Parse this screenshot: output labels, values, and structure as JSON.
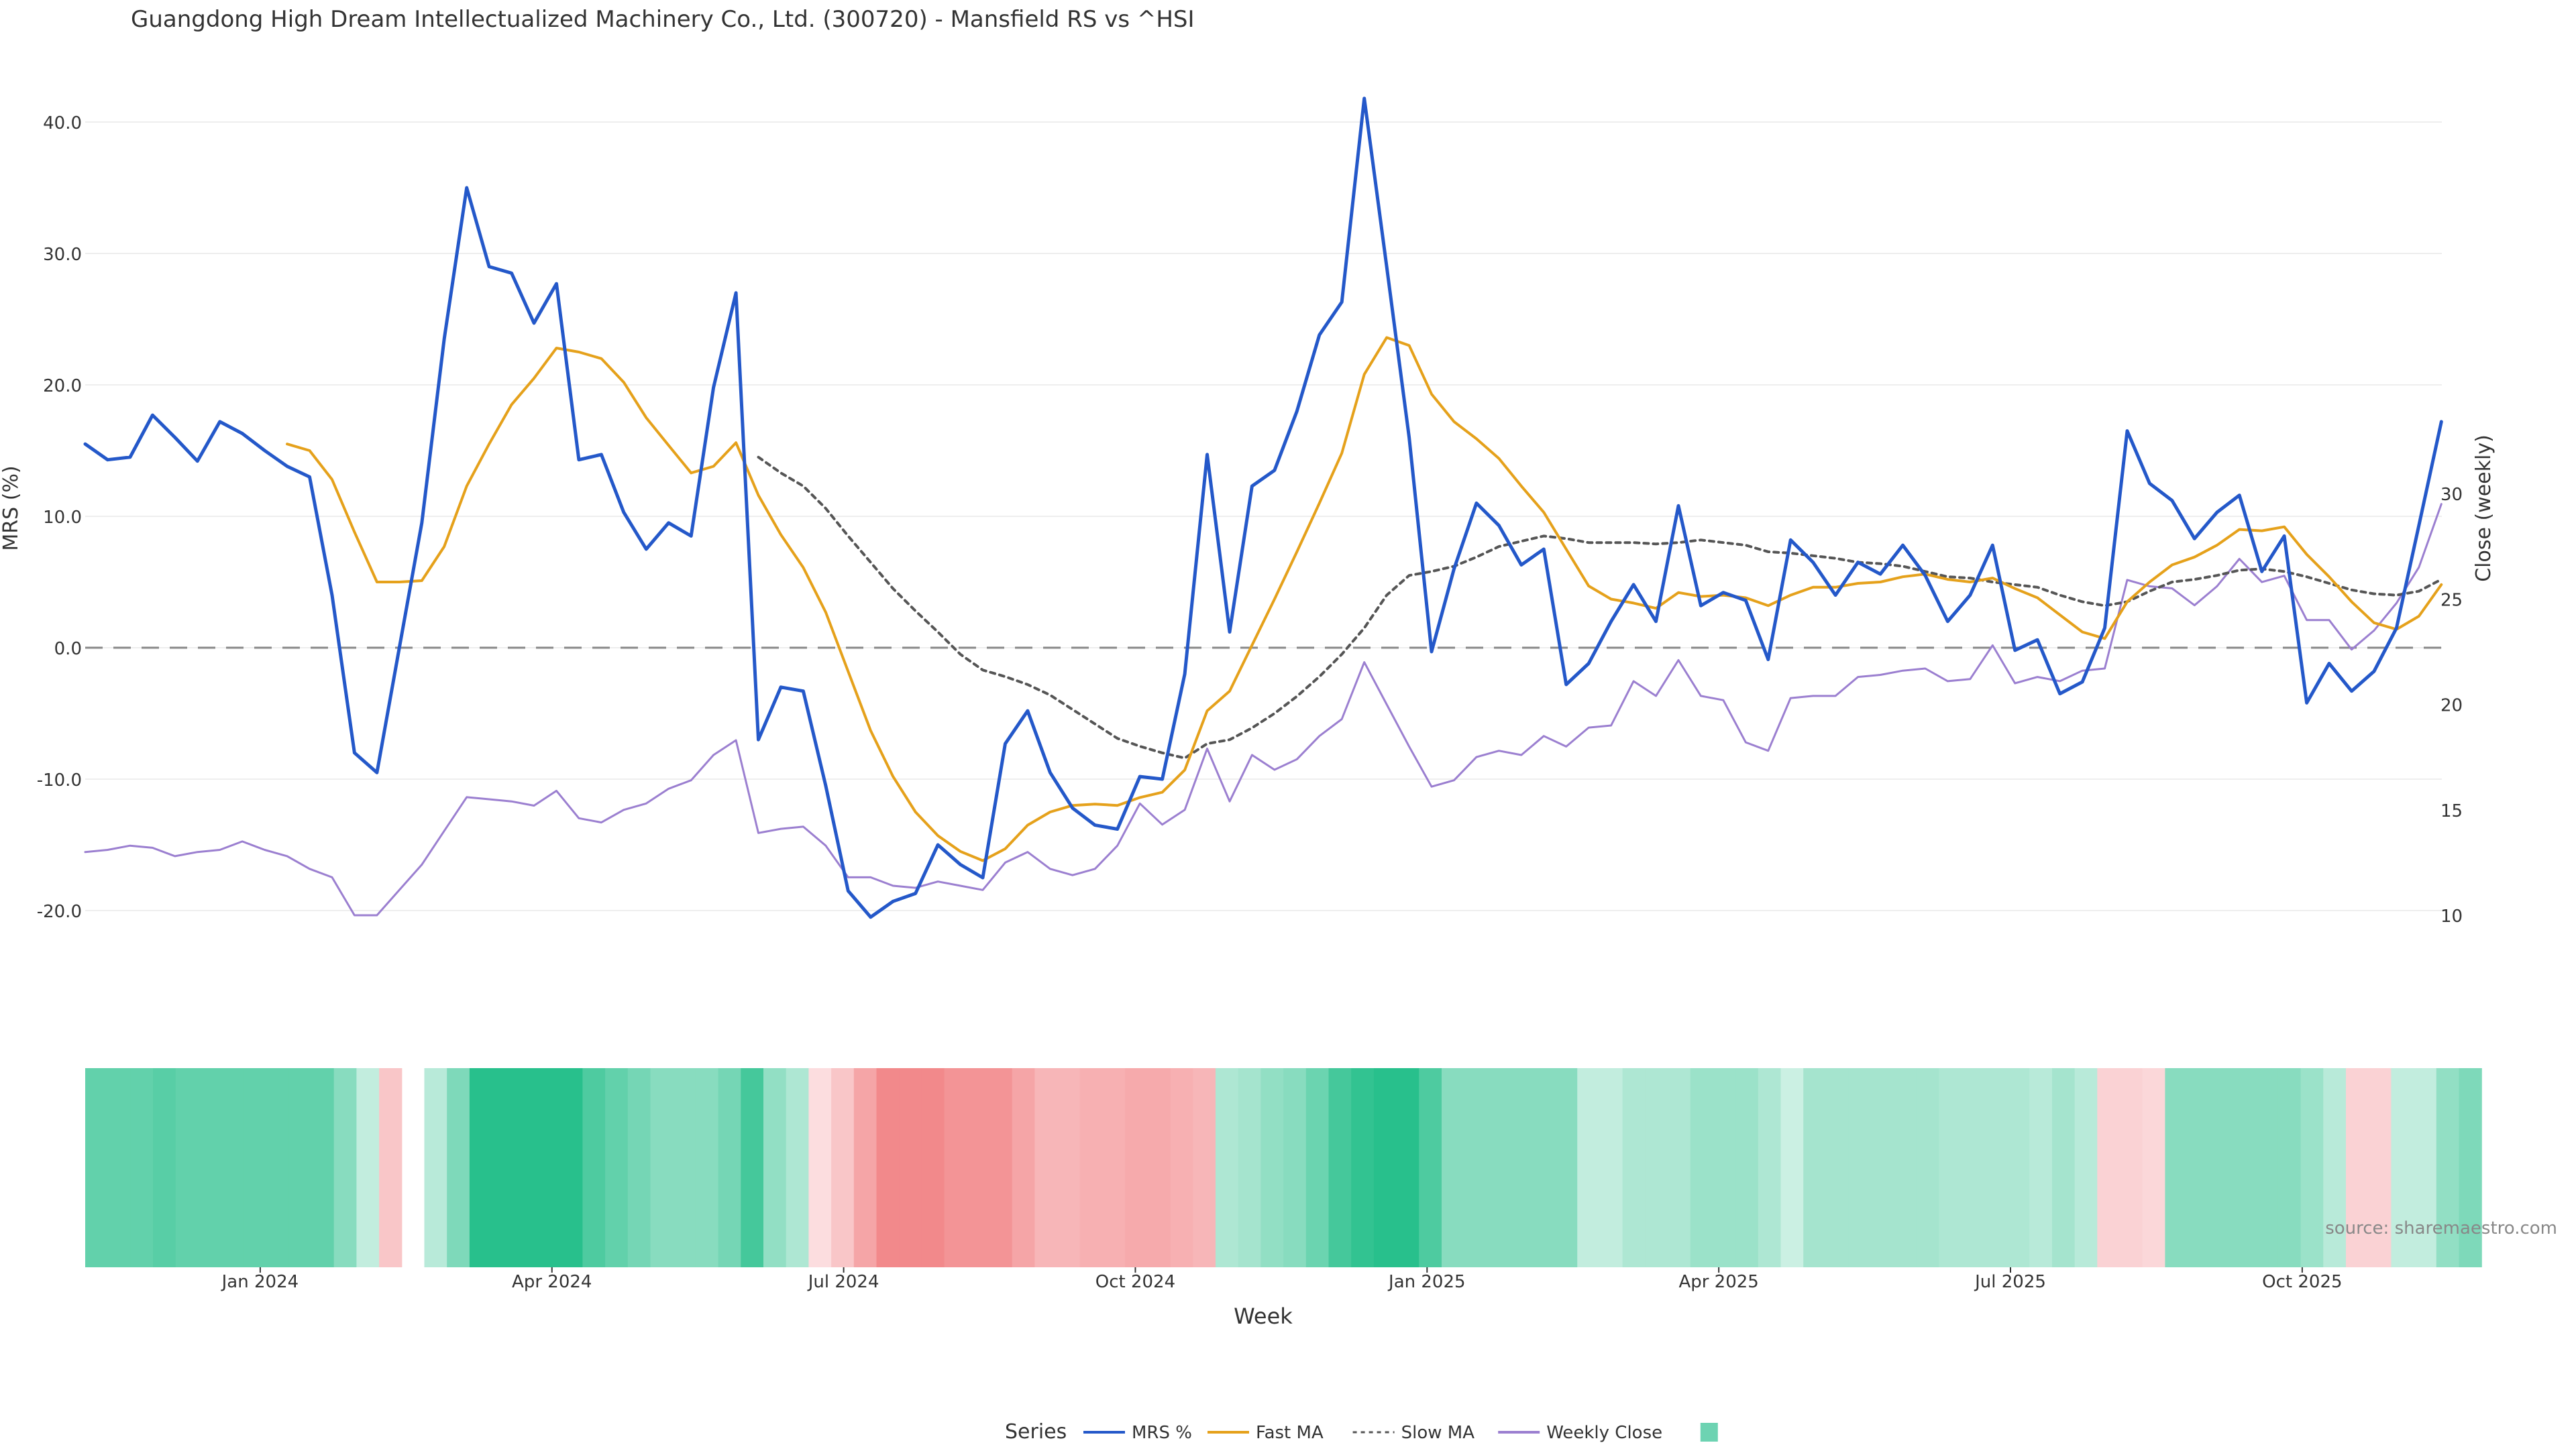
{
  "chart_data": {
    "type": "line",
    "title": "Guangdong High Dream Intellectualized Machinery Co., Ltd. (300720) - Mansfield RS vs ^HSI",
    "xlabel": "Week",
    "ylabel": "MRS (%)",
    "y2label": "Close (weekly)",
    "source": "source: sharemaestro.com",
    "legend_title": "Series",
    "ylim": [
      -25,
      45
    ],
    "y2lim": [
      7.7,
      30
    ],
    "yticks": [
      "-20.0",
      "-10.0",
      "0.0",
      "10.0",
      "20.0",
      "30.0",
      "40.0"
    ],
    "y2ticks": [
      "10",
      "15",
      "20",
      "25",
      "30"
    ],
    "xticks": [
      "Jan 2024",
      "Apr 2024",
      "Jul 2024",
      "Oct 2024",
      "Jan 2025",
      "Apr 2025",
      "Jul 2025",
      "Oct 2025"
    ],
    "xtick_positions": [
      7.8,
      20.8,
      33.8,
      46.8,
      59.8,
      72.8,
      85.8,
      98.8
    ],
    "grid": true,
    "legend_position": "bottom-center",
    "series": [
      {
        "name": "MRS %",
        "color": "#2458c9",
        "axis": "left",
        "dash": "solid",
        "start_week": 0,
        "values": [
          15.5,
          14.3,
          14.5,
          17.7,
          16.0,
          14.2,
          17.2,
          16.3,
          15.0,
          13.8,
          13.0,
          4.0,
          -8.0,
          -9.5,
          0.0,
          9.5,
          23.5,
          35.0,
          29.0,
          28.5,
          24.7,
          27.7,
          14.3,
          14.7,
          10.3,
          7.5,
          9.5,
          8.5,
          19.8,
          27.0,
          -7.0,
          -3.0,
          -3.3,
          -10.5,
          -18.5,
          -20.5,
          -19.3,
          -18.7,
          -15.0,
          -16.5,
          -17.5,
          -7.3,
          -4.8,
          -9.5,
          -12.2,
          -13.5,
          -13.8,
          -9.8,
          -10.0,
          -2.0,
          14.7,
          1.2,
          12.3,
          13.5,
          18.0,
          23.8,
          26.3,
          41.8,
          29.0,
          16.0,
          -0.3,
          6.0,
          11.0,
          9.3,
          6.3,
          7.5,
          -2.8,
          -1.2,
          2.0,
          4.8,
          2.0,
          10.8,
          3.2,
          4.2,
          3.6,
          -0.9,
          8.2,
          6.5,
          4.0,
          6.5,
          5.6,
          7.8,
          5.5,
          2.0,
          4.0,
          7.8,
          -0.2,
          0.6,
          -3.5,
          -2.6,
          1.5,
          16.5,
          12.5,
          11.2,
          8.3,
          10.3,
          11.6,
          5.8,
          8.5,
          -4.2,
          -1.2,
          -3.3,
          -1.8,
          1.5,
          9.3,
          17.2
        ]
      },
      {
        "name": "Fast MA",
        "color": "#e5a11b",
        "axis": "left",
        "dash": "solid",
        "start_week": 9,
        "values": [
          15.5,
          15.0,
          12.8,
          8.8,
          5.0,
          5.0,
          5.1,
          7.7,
          12.3,
          15.5,
          18.5,
          20.5,
          22.8,
          22.5,
          22.0,
          20.2,
          17.5,
          15.4,
          13.3,
          13.8,
          15.6,
          11.6,
          8.6,
          6.1,
          2.7,
          -1.8,
          -6.3,
          -9.8,
          -12.5,
          -14.3,
          -15.5,
          -16.2,
          -15.3,
          -13.5,
          -12.5,
          -12.0,
          -11.9,
          -12.0,
          -11.4,
          -11.0,
          -9.3,
          -4.8,
          -3.3,
          0.2,
          3.7,
          7.3,
          11.0,
          14.8,
          20.8,
          23.6,
          23.0,
          19.3,
          17.2,
          15.9,
          14.4,
          12.3,
          10.3,
          7.5,
          4.7,
          3.7,
          3.4,
          3.0,
          4.2,
          3.9,
          4.0,
          3.8,
          3.2,
          4.0,
          4.6,
          4.6,
          4.9,
          5.0,
          5.4,
          5.6,
          5.2,
          5.0,
          5.3,
          4.5,
          3.8,
          2.5,
          1.2,
          0.7,
          3.5,
          5.0,
          6.3,
          6.9,
          7.8,
          9.0,
          8.9,
          9.2,
          7.1,
          5.4,
          3.5,
          1.9,
          1.4,
          2.4,
          4.8
        ]
      },
      {
        "name": "Slow MA",
        "color": "#555555",
        "axis": "left",
        "dash": "dotted",
        "start_week": 30,
        "values": [
          14.5,
          13.3,
          12.3,
          10.6,
          8.5,
          6.5,
          4.5,
          2.8,
          1.2,
          -0.5,
          -1.7,
          -2.2,
          -2.8,
          -3.6,
          -4.7,
          -5.8,
          -6.9,
          -7.5,
          -8.0,
          -8.4,
          -7.3,
          -7.0,
          -6.1,
          -5.0,
          -3.7,
          -2.2,
          -0.5,
          1.5,
          4.0,
          5.5,
          5.8,
          6.2,
          6.9,
          7.7,
          8.1,
          8.5,
          8.3,
          8.0,
          8.0,
          8.0,
          7.9,
          8.0,
          8.2,
          8.0,
          7.8,
          7.3,
          7.2,
          7.0,
          6.8,
          6.5,
          6.4,
          6.2,
          5.8,
          5.4,
          5.3,
          5.0,
          4.8,
          4.6,
          4.0,
          3.5,
          3.2,
          3.5,
          4.3,
          5.0,
          5.2,
          5.5,
          5.9,
          6.0,
          5.8,
          5.4,
          4.9,
          4.4,
          4.1,
          4.0,
          4.3,
          5.2
        ]
      },
      {
        "name": "Weekly Close",
        "color": "#9b7fd0",
        "axis": "right",
        "dash": "solid",
        "start_week": 0,
        "values": [
          13.0,
          13.1,
          13.3,
          13.2,
          12.8,
          13.0,
          13.1,
          13.5,
          13.1,
          12.8,
          12.2,
          11.8,
          10.0,
          10.0,
          11.2,
          12.4,
          14.0,
          15.6,
          15.5,
          15.4,
          15.2,
          15.9,
          14.6,
          14.4,
          15.0,
          15.3,
          16.0,
          16.4,
          17.6,
          18.3,
          13.9,
          14.1,
          14.2,
          13.3,
          11.8,
          11.8,
          11.4,
          11.3,
          11.6,
          11.4,
          11.2,
          12.5,
          13.0,
          12.2,
          11.9,
          12.2,
          13.3,
          15.3,
          14.3,
          15.0,
          17.9,
          15.4,
          17.6,
          16.9,
          17.4,
          18.5,
          19.3,
          22.0,
          20.0,
          18.0,
          16.1,
          16.4,
          17.5,
          17.8,
          17.6,
          18.5,
          18.0,
          18.9,
          19.0,
          21.1,
          20.4,
          22.1,
          20.4,
          20.2,
          18.2,
          17.8,
          20.3,
          20.4,
          20.4,
          21.3,
          21.4,
          21.6,
          21.7,
          21.1,
          21.2,
          22.8,
          21.0,
          21.3,
          21.1,
          21.6,
          21.7,
          25.9,
          25.6,
          25.5,
          24.7,
          25.6,
          26.9,
          25.8,
          26.1,
          24.0,
          24.0,
          22.6,
          23.5,
          24.8,
          26.5,
          29.5
        ]
      }
    ],
    "heatmap": {
      "name": "",
      "color": "#6dd3b2",
      "gap_weeks": [
        14
      ],
      "values": [
        0.7,
        0.7,
        0.7,
        0.75,
        0.7,
        0.7,
        0.7,
        0.7,
        0.7,
        0.7,
        0.7,
        0.5,
        0.2,
        -0.3,
        null,
        0.25,
        0.55,
        1.0,
        1.0,
        1.0,
        1.0,
        1.0,
        0.8,
        0.7,
        0.6,
        0.5,
        0.5,
        0.5,
        0.6,
        0.85,
        0.45,
        0.3,
        -0.1,
        -0.3,
        -0.6,
        -0.85,
        -0.85,
        -0.85,
        -0.75,
        -0.75,
        -0.75,
        -0.6,
        -0.45,
        -0.45,
        -0.5,
        -0.5,
        -0.55,
        -0.55,
        -0.5,
        -0.45,
        0.3,
        0.35,
        0.45,
        0.5,
        0.65,
        0.85,
        0.95,
        1.0,
        1.0,
        0.8,
        0.5,
        0.5,
        0.5,
        0.5,
        0.5,
        0.5,
        0.2,
        0.2,
        0.3,
        0.3,
        0.3,
        0.4,
        0.4,
        0.4,
        0.3,
        0.15,
        0.35,
        0.35,
        0.35,
        0.35,
        0.35,
        0.35,
        0.3,
        0.3,
        0.3,
        0.3,
        0.25,
        0.35,
        0.25,
        -0.2,
        -0.2,
        -0.15,
        0.5,
        0.5,
        0.5,
        0.5,
        0.5,
        0.5,
        0.4,
        0.25,
        -0.2,
        -0.2,
        0.2,
        0.2,
        0.45,
        0.55
      ]
    }
  }
}
